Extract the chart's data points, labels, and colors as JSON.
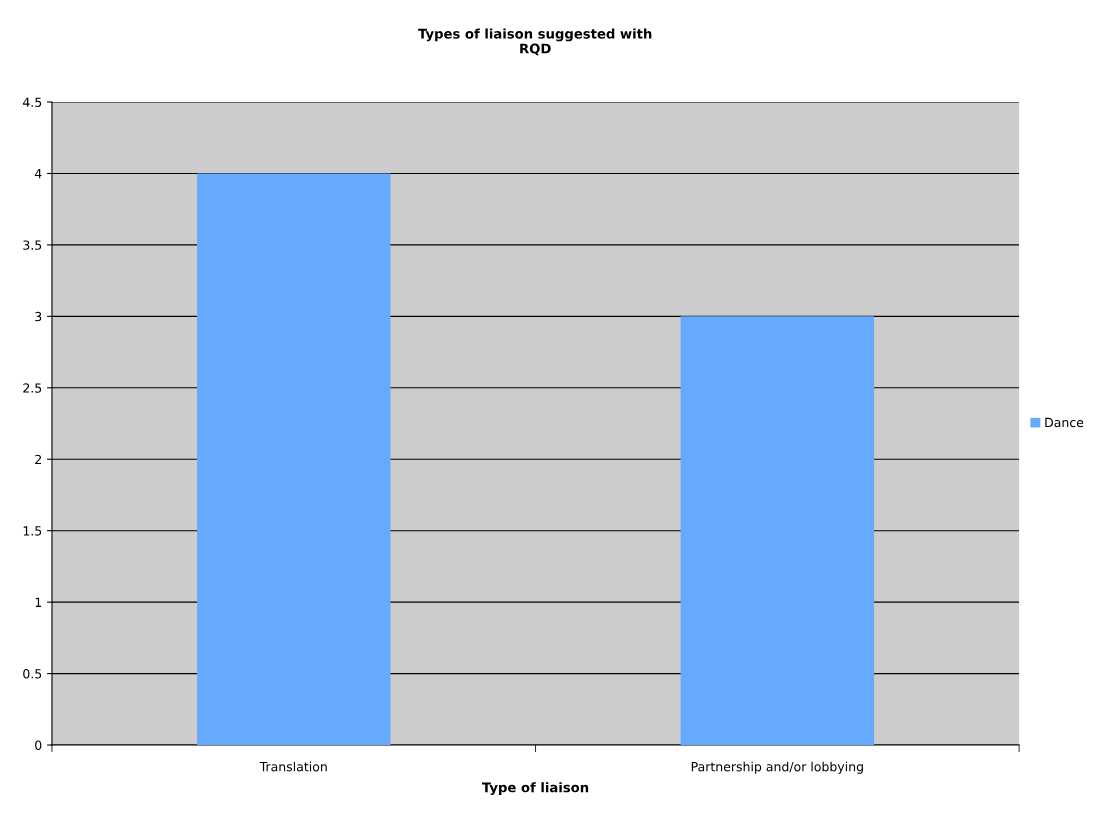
{
  "chart_data": {
    "type": "bar",
    "title": "Types of liaison suggested with\nRQD",
    "xlabel": "Type of liaison",
    "categories": [
      "Translation",
      "Partnership and/or lobbying"
    ],
    "series": [
      {
        "name": "Dance",
        "color": "#66aaff",
        "values": [
          4,
          3
        ]
      }
    ],
    "ylim": [
      0,
      4.5
    ],
    "yticks": [
      0,
      0.5,
      1,
      1.5,
      2,
      2.5,
      3,
      3.5,
      4,
      4.5
    ],
    "grid": "y",
    "legend": "right"
  }
}
